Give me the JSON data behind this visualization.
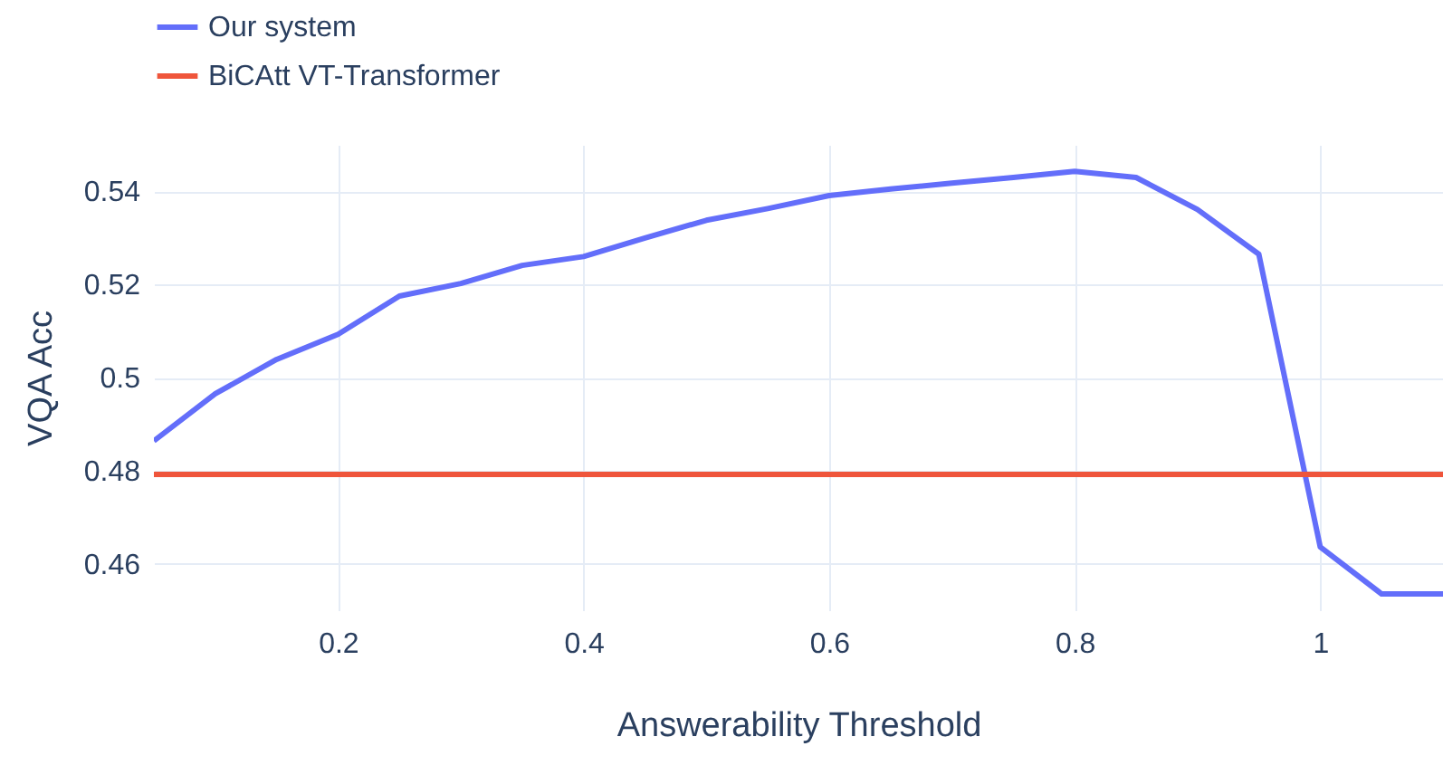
{
  "chart_data": {
    "type": "line",
    "xlabel": "Answerability Threshold",
    "ylabel": "VQA Acc",
    "x": [
      0.05,
      0.1,
      0.15,
      0.2,
      0.25,
      0.3,
      0.35,
      0.4,
      0.45,
      0.5,
      0.55,
      0.6,
      0.65,
      0.7,
      0.75,
      0.8,
      0.85,
      0.9,
      0.95,
      1.0,
      1.05,
      1.1
    ],
    "series": [
      {
        "name": "Our system",
        "color": "#636efa",
        "values": [
          0.4864,
          0.4965,
          0.5039,
          0.5093,
          0.5175,
          0.5202,
          0.5241,
          0.526,
          0.53,
          0.5338,
          0.5363,
          0.5391,
          0.5405,
          0.5418,
          0.543,
          0.5443,
          0.543,
          0.5361,
          0.5265,
          0.4636,
          0.4535,
          0.4535
        ]
      },
      {
        "name": "BiCAtt VT-Transformer",
        "color": "#ef553b",
        "x": [
          0.05,
          1.1
        ],
        "values": [
          0.4792,
          0.4792
        ]
      }
    ],
    "xlim": [
      0.05,
      1.1
    ],
    "ylim": [
      0.45,
      0.55
    ],
    "xticks": [
      0.2,
      0.4,
      0.6,
      0.8,
      1
    ],
    "yticks": [
      0.46,
      0.48,
      0.5,
      0.52,
      0.54
    ],
    "grid": true,
    "legend": "top left",
    "line_style": "solid",
    "marker": "none"
  }
}
